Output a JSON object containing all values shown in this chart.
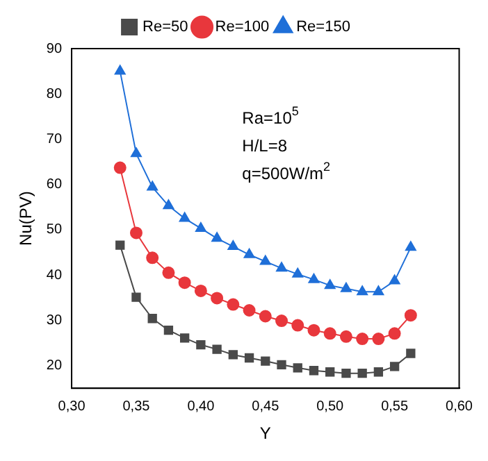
{
  "chart_data": {
    "type": "line",
    "xlabel": "Y",
    "ylabel": "Nu(PV)",
    "x": [
      0.3375,
      0.35,
      0.3625,
      0.375,
      0.3875,
      0.4,
      0.4125,
      0.425,
      0.4375,
      0.45,
      0.4625,
      0.475,
      0.4875,
      0.5,
      0.5125,
      0.525,
      0.5375,
      0.55,
      0.5625
    ],
    "series": [
      {
        "name": "Re=50",
        "color": "#4a4a4a",
        "marker": "square",
        "values": [
          46.6,
          35.1,
          30.4,
          27.8,
          26.1,
          24.6,
          23.6,
          22.4,
          21.7,
          21.0,
          20.2,
          19.5,
          18.9,
          18.6,
          18.3,
          18.3,
          18.6,
          19.8,
          22.7
        ]
      },
      {
        "name": "Re=100",
        "color": "#e8373c",
        "marker": "circle",
        "values": [
          63.7,
          49.3,
          43.8,
          40.5,
          38.3,
          36.5,
          34.9,
          33.5,
          32.2,
          30.9,
          29.9,
          28.9,
          27.8,
          27.1,
          26.4,
          25.9,
          25.9,
          27.1,
          31.1
        ]
      },
      {
        "name": "Re=150",
        "color": "#1f6fd8",
        "marker": "triangle",
        "values": [
          85.0,
          66.8,
          59.4,
          55.3,
          52.5,
          50.3,
          48.1,
          46.3,
          44.5,
          43.0,
          41.5,
          40.2,
          39.0,
          37.7,
          37.0,
          36.3,
          36.3,
          38.7,
          46.1
        ]
      }
    ],
    "xlim": [
      0.3,
      0.6
    ],
    "xticks": [
      {
        "value": 0.3,
        "label": "0,30"
      },
      {
        "value": 0.35,
        "label": "0,35"
      },
      {
        "value": 0.4,
        "label": "0,40"
      },
      {
        "value": 0.45,
        "label": "0,45"
      },
      {
        "value": 0.5,
        "label": "0,50"
      },
      {
        "value": 0.55,
        "label": "0,55"
      },
      {
        "value": 0.6,
        "label": "0,60"
      }
    ],
    "ylim": [
      15,
      90
    ],
    "yticks": [
      20,
      30,
      40,
      50,
      60,
      70,
      80,
      90
    ],
    "grid": false,
    "legend": "top",
    "line_style": "solid",
    "annotations": [
      "Ra=10$^{5}$",
      "H/L=8",
      "q=500W/m$^{2}$"
    ]
  }
}
